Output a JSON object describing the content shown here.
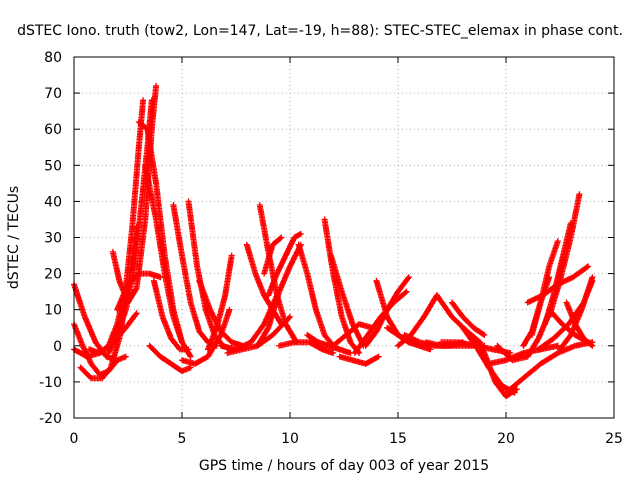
{
  "chart_data": {
    "type": "scatter",
    "title": "dSTEC Iono. truth (tow2, Lon=147, Lat=-19, h=88): STEC-STEC_elemax in phase cont.",
    "xlabel": "GPS time / hours of day 003 of year 2015",
    "ylabel": "dSTEC  / TECUs",
    "xlim": [
      0,
      25
    ],
    "ylim": [
      -20,
      80
    ],
    "x_ticks": [
      0,
      5,
      10,
      15,
      20,
      25
    ],
    "y_ticks": [
      -20,
      -10,
      0,
      10,
      20,
      30,
      40,
      50,
      60,
      70,
      80
    ],
    "x_tick_labels": [
      "0",
      "5",
      "10",
      "15",
      "20",
      "25"
    ],
    "y_tick_labels": [
      "-20",
      "-10",
      "0",
      "10",
      "20",
      "30",
      "40",
      "50",
      "60",
      "70",
      "80"
    ],
    "grid": true,
    "marker": "+",
    "color": "#ff0000",
    "series": [
      {
        "x": [
          0.0,
          0.5,
          1.0,
          1.5,
          2.0,
          2.4
        ],
        "y": [
          17,
          8,
          1,
          -3,
          -4,
          -3
        ]
      },
      {
        "x": [
          0.0,
          0.4,
          0.8,
          1.2,
          1.6,
          2.0
        ],
        "y": [
          6,
          0,
          -5,
          -8,
          -7,
          -4
        ]
      },
      {
        "x": [
          0.0,
          0.6,
          1.2,
          1.8,
          2.4,
          2.9
        ],
        "y": [
          -1,
          -3,
          -2,
          1,
          5,
          9
        ]
      },
      {
        "x": [
          0.3,
          0.8,
          1.3,
          1.7,
          2.1,
          2.5,
          2.9
        ],
        "y": [
          -6,
          -9,
          -9,
          -6,
          2,
          16,
          33
        ]
      },
      {
        "x": [
          0.7,
          1.2,
          1.6,
          2.0,
          2.4,
          2.7,
          3.0,
          3.2
        ],
        "y": [
          -1,
          -2,
          0,
          6,
          16,
          33,
          55,
          68
        ]
      },
      {
        "x": [
          1.8,
          2.1,
          2.5,
          2.9,
          3.3,
          3.6,
          3.8
        ],
        "y": [
          26,
          18,
          12,
          16,
          35,
          60,
          72
        ]
      },
      {
        "x": [
          1.6,
          2.0,
          2.4,
          2.8,
          3.1,
          3.4,
          3.6
        ],
        "y": [
          -2,
          3,
          10,
          22,
          38,
          55,
          68
        ]
      },
      {
        "x": [
          2.0,
          2.5,
          3.0,
          3.5,
          4.0
        ],
        "y": [
          10,
          17,
          20,
          20,
          19
        ]
      },
      {
        "x": [
          3.0,
          3.4,
          3.8,
          4.2,
          4.6,
          5.0
        ],
        "y": [
          62,
          60,
          45,
          25,
          10,
          1
        ]
      },
      {
        "x": [
          3.3,
          3.8,
          4.2,
          4.6,
          5.0,
          5.4
        ],
        "y": [
          50,
          35,
          20,
          8,
          1,
          -3
        ]
      },
      {
        "x": [
          3.5,
          4.0,
          4.5,
          5.0,
          5.4
        ],
        "y": [
          0,
          -3,
          -5,
          -7,
          -6
        ]
      },
      {
        "x": [
          3.7,
          4.1,
          4.5,
          4.9,
          5.3
        ],
        "y": [
          18,
          8,
          2,
          -1,
          -1
        ]
      },
      {
        "x": [
          4.6,
          5.0,
          5.4,
          5.8,
          6.2,
          6.6
        ],
        "y": [
          39,
          25,
          12,
          4,
          1,
          0
        ]
      },
      {
        "x": [
          5.0,
          5.6,
          6.2,
          6.8,
          7.2
        ],
        "y": [
          -4,
          -5,
          -3,
          3,
          10
        ]
      },
      {
        "x": [
          5.3,
          5.7,
          6.1,
          6.5,
          6.9,
          7.3
        ],
        "y": [
          40,
          22,
          10,
          3,
          0,
          -1
        ]
      },
      {
        "x": [
          5.8,
          6.3,
          6.8,
          7.3,
          7.8
        ],
        "y": [
          18,
          10,
          4,
          1,
          0
        ]
      },
      {
        "x": [
          6.2,
          6.6,
          7.0,
          7.3
        ],
        "y": [
          -1,
          5,
          14,
          25
        ]
      },
      {
        "x": [
          6.8,
          7.5,
          8.2,
          8.8,
          9.4
        ],
        "y": [
          0,
          -1,
          1,
          6,
          14
        ]
      },
      {
        "x": [
          7.1,
          7.8,
          8.5,
          9.2,
          10.0
        ],
        "y": [
          -2,
          -1,
          0,
          3,
          8
        ]
      },
      {
        "x": [
          8.0,
          8.4,
          8.8,
          9.2,
          9.6
        ],
        "y": [
          28,
          20,
          14,
          10,
          6
        ]
      },
      {
        "x": [
          8.6,
          9.0,
          9.4,
          9.8,
          10.3
        ],
        "y": [
          39,
          26,
          14,
          6,
          1
        ]
      },
      {
        "x": [
          8.5,
          9.0,
          9.5,
          10.0,
          10.5
        ],
        "y": [
          0,
          5,
          15,
          22,
          28
        ]
      },
      {
        "x": [
          9.0,
          9.4,
          9.8,
          10.2,
          10.5
        ],
        "y": [
          14,
          20,
          25,
          30,
          31
        ]
      },
      {
        "x": [
          8.8,
          9.2,
          9.6
        ],
        "y": [
          20,
          28,
          30
        ]
      },
      {
        "x": [
          10.4,
          10.8,
          11.2,
          11.6,
          12.0
        ],
        "y": [
          28,
          20,
          10,
          3,
          0
        ]
      },
      {
        "x": [
          9.5,
          10.2,
          10.9,
          11.5,
          12.0
        ],
        "y": [
          0,
          1,
          1,
          -1,
          -2
        ]
      },
      {
        "x": [
          10.8,
          11.3,
          11.8,
          12.3,
          12.8
        ],
        "y": [
          3,
          1,
          0,
          -1,
          -2
        ]
      },
      {
        "x": [
          11.6,
          12.0,
          12.4,
          12.8,
          13.2
        ],
        "y": [
          35,
          20,
          8,
          1,
          -2
        ]
      },
      {
        "x": [
          11.9,
          12.4,
          12.9,
          13.4
        ],
        "y": [
          25,
          15,
          6,
          0
        ]
      },
      {
        "x": [
          12.0,
          12.6,
          13.2,
          13.8
        ],
        "y": [
          0,
          3,
          6,
          5
        ]
      },
      {
        "x": [
          12.3,
          12.9,
          13.5,
          14.1
        ],
        "y": [
          -3,
          -4,
          -5,
          -3
        ]
      },
      {
        "x": [
          13.0,
          13.6,
          14.2,
          14.8,
          15.4
        ],
        "y": [
          -2,
          3,
          8,
          12,
          15
        ]
      },
      {
        "x": [
          13.5,
          14.0,
          14.5,
          15.0,
          15.5
        ],
        "y": [
          0,
          4,
          10,
          15,
          19
        ]
      },
      {
        "x": [
          14.0,
          14.5,
          15.0,
          15.5,
          16.0
        ],
        "y": [
          18,
          8,
          3,
          1,
          0
        ]
      },
      {
        "x": [
          14.5,
          15.0,
          15.5,
          16.0,
          16.5
        ],
        "y": [
          5,
          3,
          1,
          0,
          -1
        ]
      },
      {
        "x": [
          15.0,
          15.6,
          16.2,
          16.8
        ],
        "y": [
          0,
          3,
          8,
          14
        ]
      },
      {
        "x": [
          15.3,
          16.0,
          16.7,
          17.4,
          18.0
        ],
        "y": [
          3,
          1,
          0,
          0,
          1
        ]
      },
      {
        "x": [
          16.3,
          17.0,
          17.7,
          18.4,
          19.0
        ],
        "y": [
          1,
          0,
          0,
          0,
          0
        ]
      },
      {
        "x": [
          16.8,
          17.5,
          18.2,
          18.8
        ],
        "y": [
          14,
          8,
          4,
          1
        ]
      },
      {
        "x": [
          17.5,
          18.0,
          18.5,
          19.0
        ],
        "y": [
          12,
          8,
          5,
          3
        ]
      },
      {
        "x": [
          17.0,
          17.8,
          18.6,
          19.4,
          20.2
        ],
        "y": [
          1,
          1,
          0,
          -1,
          -2
        ]
      },
      {
        "x": [
          18.0,
          18.6,
          19.2,
          19.8,
          20.4
        ],
        "y": [
          5,
          0,
          -6,
          -11,
          -13
        ]
      },
      {
        "x": [
          18.4,
          19.0,
          19.5,
          20.0,
          20.5
        ],
        "y": [
          3,
          -2,
          -10,
          -14,
          -12
        ]
      },
      {
        "x": [
          19.2,
          20.0,
          20.8,
          21.6,
          22.4
        ],
        "y": [
          -5,
          -4,
          -2,
          -1,
          0
        ]
      },
      {
        "x": [
          20.0,
          20.8,
          21.6,
          22.4,
          23.2,
          24.0
        ],
        "y": [
          -13,
          -9,
          -5,
          -2,
          0,
          1
        ]
      },
      {
        "x": [
          19.6,
          20.3,
          21.0,
          21.5,
          22.0
        ],
        "y": [
          0,
          -4,
          -3,
          2,
          9
        ]
      },
      {
        "x": [
          20.8,
          21.2,
          21.6,
          22.0
        ],
        "y": [
          0,
          4,
          12,
          19
        ]
      },
      {
        "x": [
          21.2,
          21.6,
          22.0,
          22.4
        ],
        "y": [
          3,
          12,
          22,
          29
        ]
      },
      {
        "x": [
          21.8,
          22.2,
          22.6,
          23.0
        ],
        "y": [
          6,
          14,
          24,
          34
        ]
      },
      {
        "x": [
          22.0,
          22.5,
          23.0,
          23.4
        ],
        "y": [
          8,
          18,
          30,
          42
        ]
      },
      {
        "x": [
          21.5,
          22.2,
          22.9,
          23.6,
          24.0
        ],
        "y": [
          -1,
          2,
          6,
          12,
          18
        ]
      },
      {
        "x": [
          21.0,
          21.7,
          22.4,
          23.1,
          23.8
        ],
        "y": [
          12,
          14,
          17,
          19,
          22
        ]
      },
      {
        "x": [
          22.5,
          23.0,
          23.5,
          24.0
        ],
        "y": [
          -1,
          3,
          10,
          19
        ]
      },
      {
        "x": [
          22.8,
          23.2,
          23.6,
          24.0
        ],
        "y": [
          12,
          6,
          2,
          0
        ]
      },
      {
        "x": [
          22.0,
          22.6,
          23.2,
          23.8
        ],
        "y": [
          10,
          6,
          3,
          1
        ]
      }
    ]
  }
}
